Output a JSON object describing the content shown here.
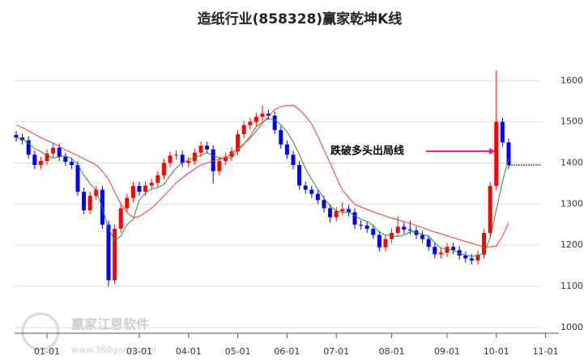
{
  "chart_data": {
    "type": "candlestick",
    "title": "造纸行业(858328)赢家乾坤K线",
    "annotation": "跌破多头出局线",
    "annotation_color": "#ff1493",
    "watermark": [
      "赢家江恩软件",
      "www.360gann.com"
    ],
    "categories": [
      null,
      null,
      null,
      null,
      null,
      "01-01",
      null,
      null,
      null,
      null,
      null,
      null,
      null,
      null,
      null,
      null,
      null,
      null,
      null,
      null,
      "03-01",
      null,
      null,
      null,
      null,
      null,
      null,
      null,
      "04-01",
      null,
      null,
      null,
      null,
      null,
      null,
      null,
      "05-01",
      null,
      null,
      null,
      null,
      null,
      null,
      null,
      "06-01",
      null,
      null,
      null,
      null,
      null,
      null,
      null,
      "07-01",
      null,
      null,
      null,
      null,
      null,
      null,
      null,
      null,
      "08-01",
      null,
      null,
      null,
      null,
      null,
      null,
      null,
      null,
      "09-01",
      null,
      null,
      null,
      null,
      null,
      null,
      null,
      "10-01",
      null,
      null,
      null,
      null,
      null,
      null,
      null,
      "11-01"
    ],
    "open": [
      1468,
      1462,
      1455,
      1420,
      1395,
      1405,
      1423,
      1437,
      1415,
      1403,
      1395,
      1330,
      1285,
      1320,
      1335,
      1250,
      1115,
      1240,
      1290,
      1315,
      1344,
      1330,
      1345,
      1352,
      1370,
      1400,
      1418,
      1420,
      1400,
      1405,
      1425,
      1442,
      1433,
      1380,
      1405,
      1415,
      1428,
      1470,
      1492,
      1500,
      1512,
      1520,
      1515,
      1480,
      1445,
      1420,
      1395,
      1345,
      1335,
      1325,
      1310,
      1290,
      1268,
      1283,
      1288,
      1280,
      1250,
      1248,
      1240,
      1225,
      1195,
      1215,
      1230,
      1245,
      1238,
      1236,
      1225,
      1215,
      1196,
      1178,
      1182,
      1196,
      1188,
      1175,
      1168,
      1163,
      1177,
      1230,
      1344,
      1500,
      1450,
      null,
      null,
      null,
      null,
      null,
      null
    ],
    "high": [
      1478,
      1472,
      1465,
      1430,
      1415,
      1433,
      1447,
      1447,
      1425,
      1413,
      1405,
      1340,
      1330,
      1345,
      1345,
      1260,
      1250,
      1300,
      1325,
      1354,
      1354,
      1355,
      1362,
      1380,
      1410,
      1428,
      1430,
      1430,
      1415,
      1435,
      1452,
      1452,
      1443,
      1415,
      1425,
      1438,
      1480,
      1502,
      1510,
      1522,
      1540,
      1530,
      1525,
      1490,
      1455,
      1430,
      1405,
      1355,
      1345,
      1335,
      1320,
      1300,
      1293,
      1305,
      1298,
      1290,
      1260,
      1258,
      1250,
      1235,
      1225,
      1240,
      1270,
      1255,
      1260,
      1246,
      1235,
      1225,
      1206,
      1192,
      1206,
      1206,
      1198,
      1185,
      1178,
      1187,
      1240,
      1354,
      1625,
      1510,
      1460,
      null,
      null,
      null,
      null,
      null,
      null
    ],
    "low": [
      1452,
      1445,
      1410,
      1385,
      1385,
      1395,
      1413,
      1405,
      1393,
      1385,
      1320,
      1275,
      1275,
      1310,
      1240,
      1100,
      1105,
      1230,
      1280,
      1305,
      1320,
      1320,
      1335,
      1342,
      1360,
      1390,
      1408,
      1390,
      1390,
      1395,
      1415,
      1423,
      1350,
      1370,
      1395,
      1405,
      1418,
      1460,
      1482,
      1490,
      1502,
      1505,
      1470,
      1435,
      1410,
      1385,
      1335,
      1325,
      1315,
      1300,
      1280,
      1255,
      1258,
      1273,
      1270,
      1240,
      1238,
      1230,
      1215,
      1185,
      1185,
      1205,
      1220,
      1228,
      1226,
      1215,
      1205,
      1186,
      1168,
      1168,
      1172,
      1178,
      1165,
      1158,
      1153,
      1153,
      1167,
      1220,
      1334,
      1440,
      1385,
      null,
      null,
      null,
      null,
      null,
      null
    ],
    "close": [
      1462,
      1455,
      1420,
      1395,
      1405,
      1423,
      1437,
      1415,
      1403,
      1395,
      1330,
      1285,
      1320,
      1335,
      1250,
      1115,
      1240,
      1290,
      1315,
      1344,
      1330,
      1345,
      1352,
      1370,
      1400,
      1418,
      1420,
      1400,
      1405,
      1425,
      1442,
      1433,
      1380,
      1405,
      1415,
      1428,
      1470,
      1492,
      1500,
      1512,
      1520,
      1515,
      1480,
      1445,
      1420,
      1395,
      1345,
      1335,
      1325,
      1310,
      1290,
      1268,
      1283,
      1288,
      1280,
      1250,
      1248,
      1240,
      1225,
      1195,
      1215,
      1230,
      1245,
      1238,
      1236,
      1225,
      1215,
      1196,
      1178,
      1182,
      1196,
      1188,
      1175,
      1168,
      1163,
      1177,
      1230,
      1344,
      1500,
      1450,
      1395,
      null,
      null,
      null,
      null,
      null,
      null
    ],
    "up_color": "#ff0000",
    "down_color": "#0000ff",
    "lines": [
      {
        "color": "#2e8b2e",
        "values": [
          1460,
          1458,
          1448,
          1435,
          1428,
          1418,
          1412,
          1415,
          1417,
          1411,
          1396,
          1370,
          1350,
          1333,
          1290,
          1240,
          1212,
          1222,
          1250,
          1263,
          1310,
          1327,
          1337,
          1340,
          1348,
          1369,
          1388,
          1401,
          1408,
          1414,
          1418,
          1425,
          1417,
          1413,
          1411,
          1412,
          1430,
          1446,
          1465,
          1488,
          1499,
          1508,
          1505,
          1493,
          1476,
          1451,
          1421,
          1386,
          1360,
          1336,
          1314,
          1296,
          1284,
          1280,
          1281,
          1272,
          1263,
          1258,
          1248,
          1232,
          1225,
          1223,
          1221,
          1225,
          1233,
          1232,
          1226,
          1222,
          1206,
          1193,
          1191,
          1188,
          1180,
          1176,
          1173,
          1174,
          1181,
          1218,
          1285,
          1355,
          1410,
          null,
          null,
          null,
          null,
          null,
          null
        ]
      },
      {
        "color": "#ff3030",
        "values": [
          1492,
          1486,
          1478,
          1470,
          1462,
          1455,
          1448,
          1440,
          1432,
          1425,
          1418,
          1410,
          1403,
          1395,
          1380,
          1360,
          1330,
          1300,
          1280,
          1267,
          1270,
          1280,
          1290,
          1305,
          1320,
          1336,
          1352,
          1364,
          1375,
          1386,
          1395,
          1400,
          1405,
          1409,
          1413,
          1423,
          1435,
          1447,
          1460,
          1478,
          1496,
          1514,
          1530,
          1537,
          1540,
          1540,
          1530,
          1514,
          1495,
          1465,
          1432,
          1400,
          1366,
          1334,
          1316,
          1300,
          1293,
          1287,
          1281,
          1276,
          1271,
          1266,
          1262,
          1257,
          1253,
          1248,
          1243,
          1237,
          1232,
          1228,
          1223,
          1218,
          1214,
          1209,
          1205,
          1200,
          1196,
          1196,
          1198,
          1222,
          1255,
          null,
          null,
          null,
          null,
          null,
          null
        ]
      }
    ],
    "ylim": [
      986,
      1688
    ],
    "yticks": [
      1000,
      1100,
      1200,
      1300,
      1400,
      1500,
      1600
    ],
    "grid": true
  }
}
